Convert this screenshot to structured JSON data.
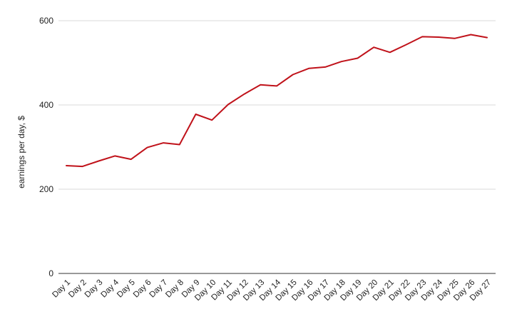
{
  "chart_data": {
    "type": "line",
    "title": "",
    "xlabel": "",
    "ylabel": "earnings per day, $",
    "ylim": [
      0,
      600
    ],
    "yticks": [
      0,
      200,
      400,
      600
    ],
    "grid": true,
    "legend": "none",
    "categories": [
      "Day 1",
      "Day 2",
      "Day 3",
      "Day 4",
      "Day 5",
      "Day 6",
      "Day 7",
      "Day 8",
      "Day 9",
      "Day 10",
      "Day 11",
      "Day 12",
      "Day 13",
      "Day 14",
      "Day 15",
      "Day 16",
      "Day 17",
      "Day 18",
      "Day 19",
      "Day 20",
      "Day 21",
      "Day 22",
      "Day 23",
      "Day 24",
      "Day 25",
      "Day 26",
      "Day 27"
    ],
    "series": [
      {
        "color": "#c0121a",
        "values": [
          256,
          254,
          267,
          279,
          271,
          299,
          310,
          306,
          378,
          364,
          401,
          426,
          448,
          445,
          472,
          487,
          490,
          503,
          511,
          537,
          525,
          543,
          562,
          561,
          558,
          567,
          560
        ]
      }
    ],
    "gridColor": "#d9d9d9",
    "axisColor": "#333333"
  }
}
